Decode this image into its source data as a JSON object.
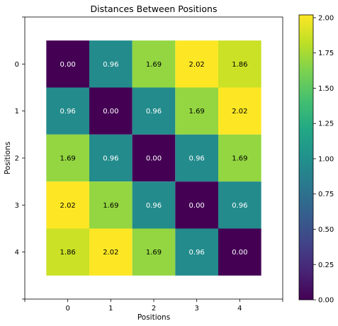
{
  "chart_data": {
    "type": "heatmap",
    "title": "Distances Between Positions",
    "xlabel": "Positions",
    "ylabel": "Positions",
    "x_categories": [
      "0",
      "1",
      "2",
      "3",
      "4"
    ],
    "y_categories": [
      "0",
      "1",
      "2",
      "3",
      "4"
    ],
    "values": [
      [
        0.0,
        0.96,
        1.69,
        2.02,
        1.86
      ],
      [
        0.96,
        0.0,
        0.96,
        1.69,
        2.02
      ],
      [
        1.69,
        0.96,
        0.0,
        0.96,
        1.69
      ],
      [
        2.02,
        1.69,
        0.96,
        0.0,
        0.96
      ],
      [
        1.86,
        2.02,
        1.69,
        0.96,
        0.0
      ]
    ],
    "cell_labels": [
      [
        "0.00",
        "0.96",
        "1.69",
        "2.02",
        "1.86"
      ],
      [
        "0.96",
        "0.00",
        "0.96",
        "1.69",
        "2.02"
      ],
      [
        "1.69",
        "0.96",
        "0.00",
        "0.96",
        "1.69"
      ],
      [
        "2.02",
        "1.69",
        "0.96",
        "0.00",
        "0.96"
      ],
      [
        "1.86",
        "2.02",
        "1.69",
        "0.96",
        "0.00"
      ]
    ],
    "value_range": [
      0.0,
      2.02
    ],
    "colormap": "viridis",
    "colorbar": {
      "ticks": [
        0.0,
        0.25,
        0.5,
        0.75,
        1.0,
        1.25,
        1.5,
        1.75,
        2.0
      ],
      "tick_labels": [
        "0.00",
        "0.25",
        "0.50",
        "0.75",
        "1.00",
        "1.25",
        "1.50",
        "1.75",
        "2.00"
      ],
      "placement": "right"
    },
    "grid": false
  }
}
